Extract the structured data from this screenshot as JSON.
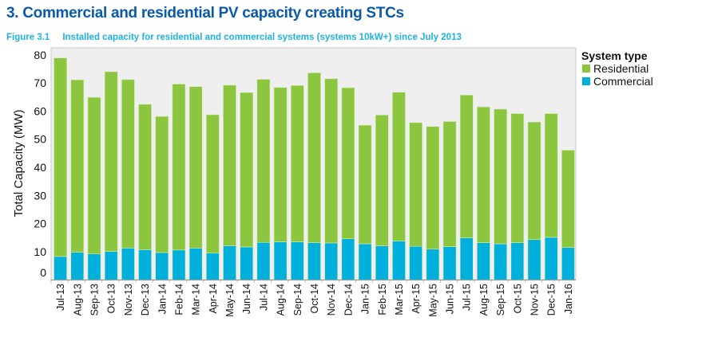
{
  "title": "3. Commercial and residential PV capacity creating STCs",
  "figure_label": "Figure 3.1",
  "figure_caption": "Installed capacity for residential and commercial systems (systems 10kW+) since July 2013",
  "chart_data": {
    "type": "bar",
    "stacked": true,
    "ylabel": "Total Capacity (MW)",
    "xlabel": "",
    "ylim": [
      0,
      82.5
    ],
    "yticks": [
      0,
      10,
      20,
      30,
      40,
      50,
      60,
      70,
      80
    ],
    "grid": false,
    "legend": {
      "title": "System type",
      "placement": "right"
    },
    "categories": [
      "Jul-13",
      "Aug-13",
      "Sep-13",
      "Oct-13",
      "Nov-13",
      "Dec-13",
      "Jan-14",
      "Feb-14",
      "Mar-14",
      "Apr-14",
      "May-14",
      "Jun-14",
      "Jul-14",
      "Aug-14",
      "Sep-14",
      "Oct-14",
      "Nov-14",
      "Dec-14",
      "Jan-15",
      "Feb-15",
      "Mar-15",
      "Apr-15",
      "May-15",
      "Jun-15",
      "Jul-15",
      "Aug-15",
      "Sep-15",
      "Oct-15",
      "Nov-15",
      "Dec-15",
      "Jan-16"
    ],
    "series": [
      {
        "name": "Commercial",
        "color": "#00b0dc",
        "values": [
          8.3,
          9.8,
          9.2,
          10.1,
          11.3,
          10.7,
          9.7,
          10.6,
          11.3,
          9.5,
          12.1,
          11.7,
          13.3,
          13.5,
          13.5,
          13.2,
          13.1,
          14.6,
          12.8,
          12.1,
          13.8,
          11.9,
          10.9,
          11.8,
          14.9,
          13.2,
          12.8,
          13.2,
          14.3,
          15.1,
          11.5
        ]
      },
      {
        "name": "Residential",
        "color": "#8cc63f",
        "values": [
          70.6,
          61.3,
          55.7,
          63.9,
          59.9,
          51.7,
          48.4,
          59.0,
          57.4,
          49.2,
          57.1,
          54.9,
          58.0,
          54.9,
          55.6,
          60.4,
          58.4,
          53.7,
          42.2,
          46.5,
          52.9,
          44.0,
          43.6,
          44.5,
          50.8,
          48.3,
          47.9,
          45.9,
          41.8,
          44.0,
          34.6
        ]
      }
    ]
  }
}
